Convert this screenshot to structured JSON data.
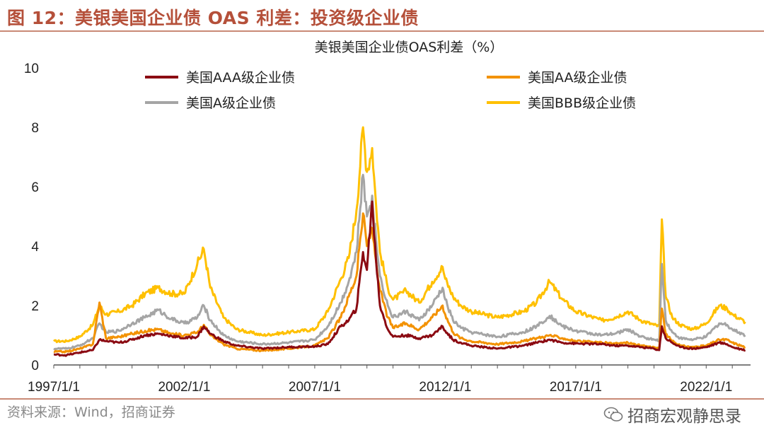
{
  "figure": {
    "title": "图 12：美银美国企业债 OAS 利差：投资级企业债",
    "source": "资料来源：Wind，招商证券",
    "watermark": "招商宏观静思录"
  },
  "colors": {
    "title": "#b5503a",
    "AAA": "#8b0a12",
    "AA": "#f39200",
    "A": "#a5a5a5",
    "BBB": "#ffc000"
  },
  "chart_data": {
    "type": "line",
    "title": "美银美国企业债OAS利差（%）",
    "xlabel": "",
    "ylabel": "",
    "xlim": [
      1997.0,
      2023.7
    ],
    "ylim": [
      0,
      10
    ],
    "yticks": [
      0,
      2,
      4,
      6,
      8,
      10
    ],
    "xticks": [
      {
        "value": 1997.0,
        "label": "1997/1/1"
      },
      {
        "value": 2002.0,
        "label": "2002/1/1"
      },
      {
        "value": 2007.0,
        "label": "2007/1/1"
      },
      {
        "value": 2012.0,
        "label": "2012/1/1"
      },
      {
        "value": 2017.0,
        "label": "2017/1/1"
      },
      {
        "value": 2022.0,
        "label": "2022/1/1"
      }
    ],
    "legend_position": "top",
    "series": [
      {
        "key": "AAA",
        "name": "美国AAA级企业债",
        "x": [
          1997.0,
          1997.5,
          1998.0,
          1998.5,
          1998.75,
          1999.0,
          1999.5,
          2000.0,
          2000.5,
          2001.0,
          2001.5,
          2002.0,
          2002.5,
          2002.75,
          2003.0,
          2003.5,
          2004.0,
          2005.0,
          2006.0,
          2007.0,
          2007.5,
          2008.0,
          2008.3,
          2008.6,
          2008.85,
          2009.0,
          2009.2,
          2009.35,
          2009.5,
          2009.8,
          2010.0,
          2010.5,
          2011.0,
          2011.5,
          2011.9,
          2012.0,
          2012.3,
          2012.6,
          2013.0,
          2014.0,
          2015.0,
          2015.5,
          2016.0,
          2016.5,
          2017.0,
          2018.0,
          2018.5,
          2019.0,
          2019.5,
          2020.0,
          2020.2,
          2020.3,
          2020.45,
          2020.7,
          2021.0,
          2021.5,
          2022.0,
          2022.5,
          2022.8,
          2023.0,
          2023.5
        ],
        "y": [
          0.35,
          0.33,
          0.42,
          0.5,
          0.85,
          0.8,
          0.75,
          0.85,
          1.0,
          1.05,
          0.98,
          0.9,
          0.95,
          1.3,
          1.05,
          0.8,
          0.65,
          0.55,
          0.6,
          0.62,
          0.7,
          1.3,
          1.5,
          1.9,
          3.8,
          3.2,
          5.5,
          3.5,
          2.0,
          1.2,
          0.95,
          1.0,
          0.9,
          1.0,
          1.3,
          1.15,
          0.85,
          0.75,
          0.65,
          0.55,
          0.65,
          0.75,
          0.85,
          0.75,
          0.72,
          0.7,
          0.65,
          0.65,
          0.6,
          0.55,
          0.5,
          1.3,
          0.9,
          0.75,
          0.6,
          0.55,
          0.6,
          0.75,
          0.7,
          0.6,
          0.5
        ]
      },
      {
        "key": "AA",
        "name": "美国AA级企业债",
        "x": [
          1997.0,
          1997.5,
          1998.0,
          1998.5,
          1998.75,
          1999.0,
          1999.5,
          2000.0,
          2000.5,
          2001.0,
          2001.5,
          2002.0,
          2002.5,
          2002.75,
          2003.0,
          2003.5,
          2004.0,
          2005.0,
          2006.0,
          2007.0,
          2007.5,
          2008.0,
          2008.3,
          2008.6,
          2008.85,
          2009.0,
          2009.2,
          2009.35,
          2009.5,
          2009.8,
          2010.0,
          2010.5,
          2011.0,
          2011.5,
          2011.9,
          2012.0,
          2012.3,
          2012.6,
          2013.0,
          2014.0,
          2015.0,
          2015.5,
          2016.0,
          2016.5,
          2017.0,
          2018.0,
          2018.5,
          2019.0,
          2019.5,
          2020.0,
          2020.2,
          2020.3,
          2020.45,
          2020.7,
          2021.0,
          2021.5,
          2022.0,
          2022.5,
          2022.8,
          2023.0,
          2023.5
        ],
        "y": [
          0.45,
          0.45,
          0.55,
          0.7,
          2.1,
          0.9,
          0.95,
          1.05,
          1.15,
          1.2,
          1.05,
          1.0,
          1.1,
          1.35,
          1.0,
          0.7,
          0.55,
          0.48,
          0.55,
          0.65,
          0.9,
          1.6,
          2.3,
          3.0,
          5.1,
          4.0,
          4.6,
          3.5,
          2.5,
          1.6,
          1.25,
          1.4,
          1.2,
          1.6,
          2.0,
          1.7,
          1.1,
          0.9,
          0.8,
          0.7,
          0.8,
          0.9,
          1.0,
          0.9,
          0.8,
          0.75,
          0.72,
          0.75,
          0.65,
          0.6,
          0.55,
          1.9,
          1.05,
          0.8,
          0.65,
          0.6,
          0.65,
          0.85,
          0.85,
          0.75,
          0.6
        ]
      },
      {
        "key": "A",
        "name": "美国A级企业债",
        "x": [
          1997.0,
          1997.5,
          1998.0,
          1998.5,
          1998.75,
          1999.0,
          1999.5,
          2000.0,
          2000.5,
          2001.0,
          2001.5,
          2002.0,
          2002.5,
          2002.75,
          2003.0,
          2003.5,
          2004.0,
          2005.0,
          2006.0,
          2007.0,
          2007.5,
          2008.0,
          2008.3,
          2008.6,
          2008.85,
          2009.0,
          2009.2,
          2009.35,
          2009.5,
          2009.8,
          2010.0,
          2010.5,
          2011.0,
          2011.5,
          2011.9,
          2012.0,
          2012.3,
          2012.6,
          2013.0,
          2014.0,
          2015.0,
          2015.5,
          2016.0,
          2016.5,
          2017.0,
          2018.0,
          2018.5,
          2019.0,
          2019.5,
          2020.0,
          2020.2,
          2020.3,
          2020.45,
          2020.7,
          2021.0,
          2021.5,
          2022.0,
          2022.5,
          2022.8,
          2023.0,
          2023.5
        ],
        "y": [
          0.55,
          0.55,
          0.65,
          0.9,
          1.4,
          1.1,
          1.15,
          1.4,
          1.6,
          1.85,
          1.55,
          1.4,
          1.6,
          2.0,
          1.5,
          1.0,
          0.8,
          0.7,
          0.75,
          0.85,
          1.3,
          2.1,
          2.8,
          3.8,
          6.4,
          5.0,
          5.7,
          4.2,
          3.0,
          2.0,
          1.6,
          1.8,
          1.5,
          2.0,
          2.6,
          2.2,
          1.5,
          1.25,
          1.1,
          0.95,
          1.1,
          1.3,
          1.65,
          1.3,
          1.15,
          1.0,
          1.05,
          1.2,
          0.95,
          0.85,
          0.8,
          3.4,
          1.5,
          1.1,
          0.9,
          0.85,
          0.95,
          1.4,
          1.35,
          1.2,
          1.0
        ]
      },
      {
        "key": "BBB",
        "name": "美国BBB级企业债",
        "x": [
          1997.0,
          1997.5,
          1998.0,
          1998.5,
          1998.75,
          1999.0,
          1999.5,
          2000.0,
          2000.5,
          2001.0,
          2001.5,
          2002.0,
          2002.5,
          2002.75,
          2003.0,
          2003.5,
          2004.0,
          2005.0,
          2006.0,
          2007.0,
          2007.5,
          2008.0,
          2008.3,
          2008.6,
          2008.85,
          2009.0,
          2009.2,
          2009.35,
          2009.5,
          2009.8,
          2010.0,
          2010.5,
          2011.0,
          2011.5,
          2011.9,
          2012.0,
          2012.3,
          2012.6,
          2013.0,
          2014.0,
          2015.0,
          2015.5,
          2016.0,
          2016.5,
          2017.0,
          2018.0,
          2018.5,
          2019.0,
          2019.5,
          2020.0,
          2020.2,
          2020.3,
          2020.45,
          2020.7,
          2021.0,
          2021.5,
          2022.0,
          2022.5,
          2022.8,
          2023.0,
          2023.5
        ],
        "y": [
          0.8,
          0.8,
          0.95,
          1.35,
          2.0,
          1.7,
          1.8,
          2.0,
          2.4,
          2.6,
          2.4,
          2.4,
          3.4,
          3.9,
          2.6,
          1.6,
          1.2,
          1.0,
          1.1,
          1.2,
          1.8,
          2.9,
          3.6,
          5.2,
          8.0,
          6.5,
          7.3,
          5.4,
          3.8,
          2.6,
          2.2,
          2.5,
          2.1,
          2.8,
          3.3,
          2.9,
          2.3,
          2.0,
          1.8,
          1.6,
          1.8,
          2.1,
          2.8,
          2.2,
          1.8,
          1.5,
          1.6,
          1.8,
          1.5,
          1.35,
          1.3,
          4.9,
          2.3,
          1.6,
          1.35,
          1.2,
          1.4,
          2.0,
          1.9,
          1.7,
          1.45
        ]
      }
    ]
  }
}
